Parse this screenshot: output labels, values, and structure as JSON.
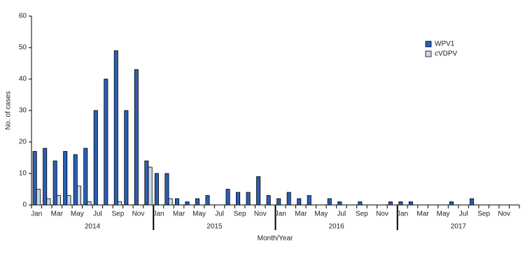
{
  "chart_data": {
    "type": "bar",
    "y_label": "No. of cases",
    "x_label": "Month/Year",
    "categories": [
      "Jan",
      null,
      "Mar",
      null,
      "May",
      null,
      "Jul",
      null,
      "Sep",
      null,
      "Nov",
      null,
      "Jan",
      null,
      "Mar",
      null,
      "May",
      null,
      "Jul",
      null,
      "Sep",
      null,
      "Nov",
      null,
      "Jan",
      null,
      "Mar",
      null,
      "May",
      null,
      "Jul",
      null,
      "Sep",
      null,
      "Nov",
      null,
      "Jan",
      null,
      "Mar",
      null,
      "May",
      null,
      "Jul",
      null,
      "Sep",
      null,
      "Nov",
      null
    ],
    "year_labels": [
      "2014",
      "2015",
      "2016",
      "2017"
    ],
    "series": [
      {
        "name": "WPV1",
        "color": "#2b5fb4",
        "values": [
          17,
          18,
          14,
          17,
          16,
          18,
          30,
          40,
          49,
          30,
          43,
          14,
          10,
          10,
          2,
          1,
          2,
          3,
          0,
          5,
          4,
          4,
          9,
          3,
          2,
          4,
          2,
          3,
          0,
          2,
          1,
          0,
          1,
          0,
          0,
          1,
          1,
          1,
          0,
          0,
          0,
          1,
          0,
          2,
          0,
          0,
          0,
          0
        ]
      },
      {
        "name": "cVDPV",
        "color": "#c9d9ea",
        "values": [
          5,
          2,
          3,
          3,
          6,
          1,
          0,
          0,
          1,
          0,
          0,
          12,
          0,
          2,
          0,
          0,
          0,
          0,
          0,
          0,
          0,
          0,
          0,
          0,
          0,
          0,
          0,
          0,
          0,
          0,
          0,
          0,
          0,
          0,
          0,
          0,
          0,
          0,
          0,
          0,
          0,
          0,
          0,
          0,
          0,
          0,
          0,
          0
        ]
      }
    ],
    "ylim": [
      0,
      60
    ],
    "yticks": [
      0,
      10,
      20,
      30,
      40,
      50,
      60
    ],
    "legend": "top-right"
  }
}
